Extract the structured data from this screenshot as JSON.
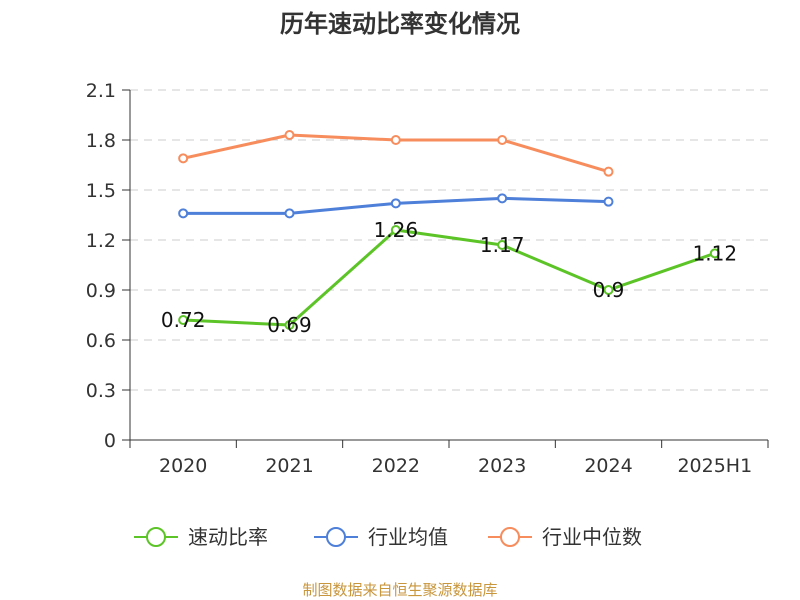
{
  "chart_data": {
    "type": "line",
    "title": "历年速动比率变化情况",
    "categories": [
      "2020",
      "2021",
      "2022",
      "2023",
      "2024",
      "2025H1"
    ],
    "ylim": [
      0,
      2.1
    ],
    "yticks": [
      "0",
      "0.3",
      "0.6",
      "0.9",
      "1.2",
      "1.5",
      "1.8",
      "2.1"
    ],
    "grid": true,
    "legend_position": "bottom",
    "series": [
      {
        "name": "速动比率",
        "color": "#5cc427",
        "values": [
          0.72,
          0.69,
          1.26,
          1.17,
          0.9,
          1.12
        ],
        "labels": [
          "0.72",
          "0.69",
          "1.26",
          "1.17",
          "0.9",
          "1.12"
        ]
      },
      {
        "name": "行业均值",
        "color": "#4e7fd9",
        "values": [
          1.36,
          1.36,
          1.42,
          1.45,
          1.43,
          null
        ]
      },
      {
        "name": "行业中位数",
        "color": "#f78c5c",
        "values": [
          1.69,
          1.83,
          1.8,
          1.8,
          1.61,
          null
        ]
      }
    ]
  },
  "source_text": "制图数据来自恒生聚源数据库",
  "source_color": "#c8963c"
}
